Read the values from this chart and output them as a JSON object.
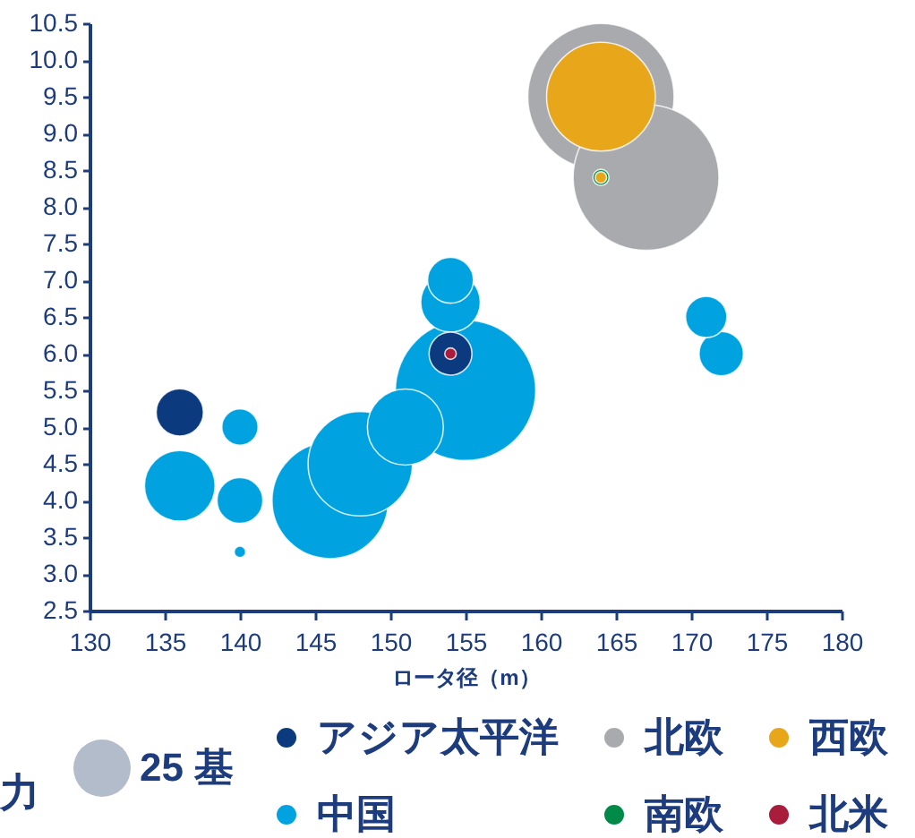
{
  "chart_data": {
    "type": "bubble",
    "xlabel": "ロータ径（m）",
    "xlim": [
      130,
      180
    ],
    "xticks": [
      130,
      135,
      140,
      145,
      150,
      155,
      160,
      165,
      170,
      175,
      180
    ],
    "ylim": [
      2.5,
      10.5
    ],
    "yticks": [
      2.5,
      {
        "value": 3,
        "label": "3.0"
      },
      3.5,
      {
        "value": 4,
        "label": "4.0"
      },
      4.5,
      {
        "value": 5,
        "label": "5.0"
      },
      5.5,
      {
        "value": 6,
        "label": "6.0"
      },
      6.5,
      {
        "value": 7,
        "label": "7.0"
      },
      7.5,
      {
        "value": 8,
        "label": "8.0"
      },
      8.5,
      {
        "value": 9,
        "label": "9.0"
      },
      9.5,
      {
        "value": 10,
        "label": "10.0"
      },
      10.5
    ],
    "size_legend": [
      {
        "value": 25,
        "label": "25 基"
      }
    ],
    "legend": "bottom",
    "annotations": [
      "力"
    ],
    "series": [
      {
        "name": "アジア太平洋",
        "color": "#0b3a7e",
        "x": [
          136,
          154
        ],
        "values": [
          5.2,
          6.0
        ],
        "sizes": [
          17,
          14
        ]
      },
      {
        "name": "北欧",
        "color": "#a8aaad",
        "x": [
          164,
          167
        ],
        "values": [
          9.5,
          8.4
        ],
        "sizes": [
          163,
          162
        ]
      },
      {
        "name": "西欧",
        "color": "#e8a61a",
        "x": [
          164,
          164
        ],
        "values": [
          9.5,
          8.4
        ],
        "sizes": [
          90,
          1
        ]
      },
      {
        "name": "中国",
        "color": "#00a3e0",
        "x": [
          136,
          140,
          140,
          140,
          146,
          148,
          151,
          155,
          154,
          154,
          171,
          172
        ],
        "values": [
          4.2,
          5.0,
          4.0,
          3.3,
          4.0,
          4.5,
          5.0,
          5.5,
          6.7,
          7.0,
          6.5,
          6.0
        ],
        "sizes": [
          38,
          10,
          16,
          1,
          103,
          83,
          44,
          150,
          27,
          16,
          13,
          15
        ]
      },
      {
        "name": "南欧",
        "color": "#008a47",
        "x": [
          164
        ],
        "values": [
          8.4
        ],
        "sizes": [
          2
        ]
      },
      {
        "name": "北米",
        "color": "#a81c3c",
        "x": [
          154
        ],
        "values": [
          6.0
        ],
        "sizes": [
          1
        ]
      }
    ]
  }
}
